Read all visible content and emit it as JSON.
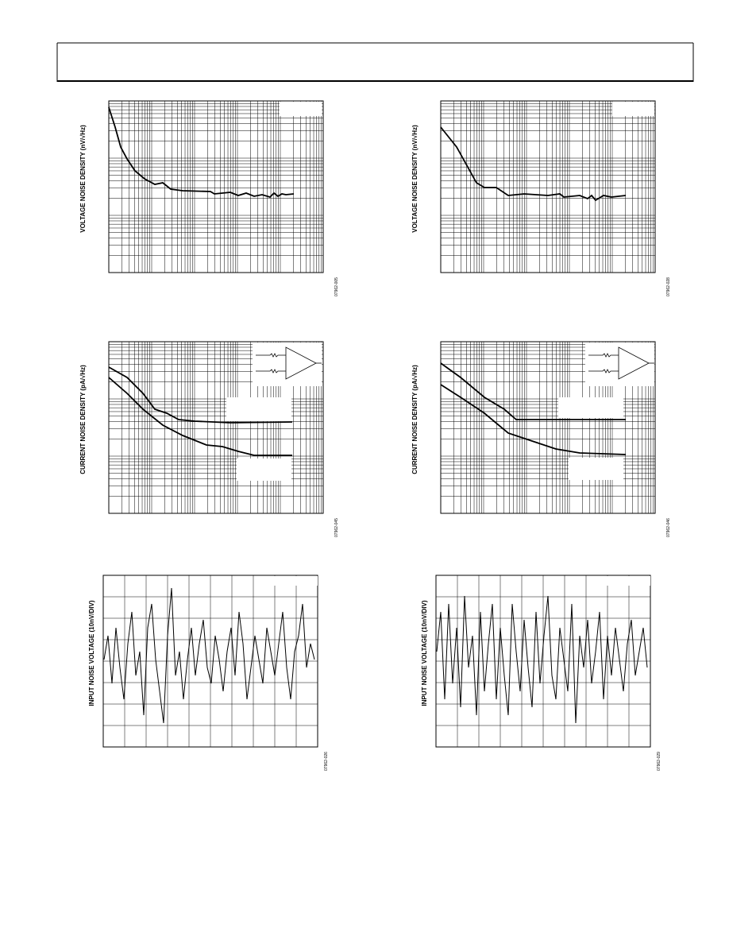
{
  "charts": [
    {
      "y_label": "VOLTAGE NOISE DENSITY (nV/√Hz)",
      "figure_id": "07962-005"
    },
    {
      "y_label": "VOLTAGE NOISE DENSITY (nV/√Hz)",
      "figure_id": "07962-028"
    },
    {
      "y_label": "CURRENT NOISE DENSITY (pA/√Hz)",
      "figure_id": "07962-045"
    },
    {
      "y_label": "CURRENT NOISE DENSITY (pA/√Hz)",
      "figure_id": "07962-046"
    },
    {
      "y_label": "INPUT NOISE VOLTAGE (10nV/DIV)",
      "figure_id": "07962-026"
    },
    {
      "y_label": "INPUT NOISE VOLTAGE (10nV/DIV)",
      "figure_id": "07962-029"
    }
  ]
}
